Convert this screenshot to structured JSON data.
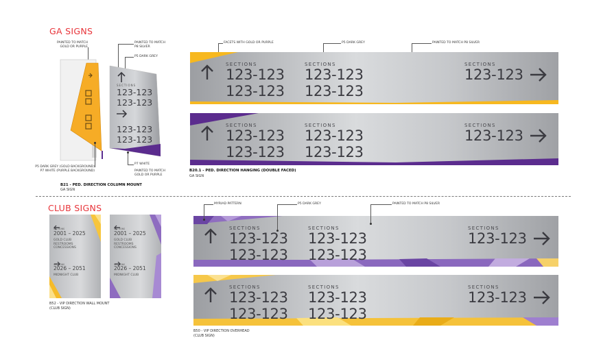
{
  "ga_heading": "GA SIGNS",
  "club_heading": "CLUB SIGNS",
  "ga_callouts": {
    "match_gold_purple_1": "PAINTED TO MATCH",
    "match_gold_purple_2": "GOLD OR PURPLE",
    "p8_silver_1": "PAINTED TO MATCH",
    "p8_silver_2": "P8 SILVER",
    "p5_grey": "P5 DARK GREY",
    "p5_bg_1": "P5 DARK GREY (GOLD BACKGROUND)",
    "p5_bg_2": "P7 WHITE (PURPLE BACKGROUND)",
    "p7_white": "P7 WHITE",
    "match_gold_purple_b_1": "PAINTED TO MATCH",
    "match_gold_purple_b_2": "GOLD OR PURPLE",
    "facets": "FACETS WITH GOLD OR PURPLE",
    "hanging_p5": "P5 DARK GREY",
    "hanging_p8": "PAINTED TO MATCH P8 SILVER"
  },
  "b21": {
    "title": "B21 - PED. DIRECTION COLUMN MOUNT",
    "sub": "GA SIGN",
    "sections": "SECTIONS",
    "num1": "123-123",
    "num2": "123-123",
    "num3": "123-123",
    "num4": "123-123"
  },
  "b201": {
    "title": "B20.1 - PED. DIRECTION HANGING (DOUBLE FACED)",
    "sub": "GA SIGN"
  },
  "hanging_sign": {
    "sections": "SECTIONS",
    "left_num_1": "123-123",
    "left_num_2": "123-123",
    "mid_num_1": "123-123",
    "mid_num_2": "123-123",
    "right_num": "123-123"
  },
  "club_callouts": {
    "myriad": "MYRIAD PATTERN",
    "p5": "P5 DARK GREY",
    "p8": "PAINTED TO MATCH P8 SILVER"
  },
  "b52": {
    "title": "B52 - VIP DIRECTION WALL MOUNT",
    "sub": "(CLUB SIGN)",
    "sec1": "SECTIONS",
    "range1": "2001 – 2025",
    "line1": "GOLD CLUB",
    "line2": "RESTROOMS",
    "line3": "CONCESSIONS",
    "sec2": "SECTIONS",
    "range2": "2026 – 2051",
    "line4": "MIDNIGHT CLUB"
  },
  "b50": {
    "title": "B50 - VIP DIRECTION OVERHEAD",
    "sub": "(CLUB SIGN)"
  },
  "colors": {
    "gold": "#f7b81f",
    "purple": "#5b2c8e",
    "silver": "#cfd1d4",
    "heading": "#e8343a"
  }
}
